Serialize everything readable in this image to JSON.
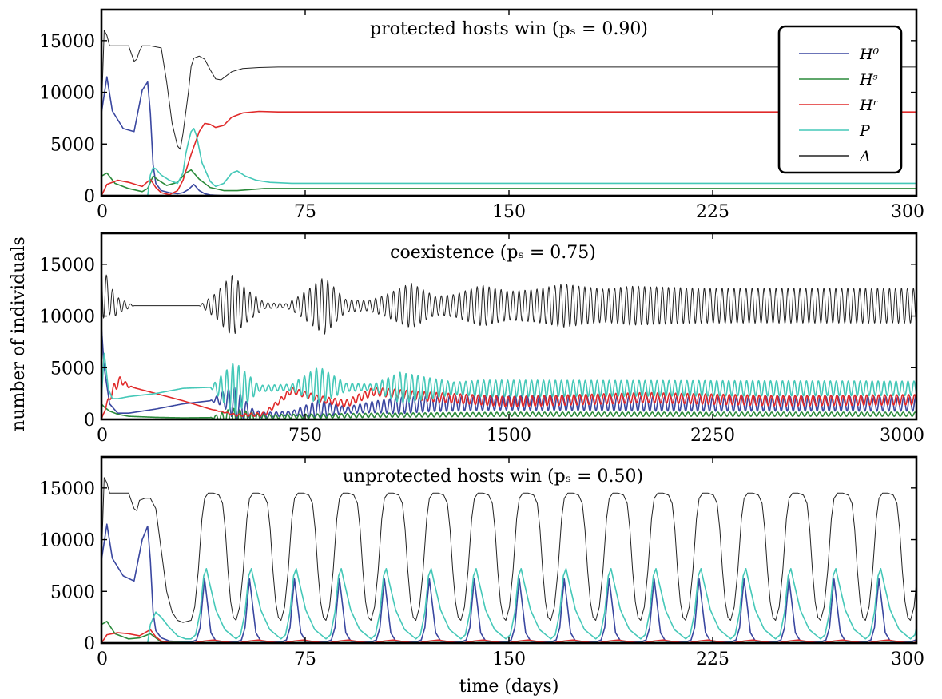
{
  "figure": {
    "ylabel": "number of individuals",
    "xlabel": "time (days)"
  },
  "legend": {
    "entries": [
      {
        "label": "H⁰",
        "color": "#3a47a0"
      },
      {
        "label": "Hˢ",
        "color": "#2a8a3a"
      },
      {
        "label": "Hʳ",
        "color": "#e02a2a"
      },
      {
        "label": "P",
        "color": "#45c8b8"
      },
      {
        "label": "Λ",
        "color": "#222222"
      }
    ]
  },
  "chart_data": [
    {
      "type": "line",
      "title": "protected hosts win (pₛ = 0.90)",
      "xlim": [
        0,
        300
      ],
      "ylim": [
        0,
        18000
      ],
      "xticks": [
        "0",
        "75",
        "150",
        "225",
        "300"
      ],
      "yticks": [
        "0",
        "5000",
        "10000",
        "15000"
      ],
      "series": [
        {
          "name": "H⁰",
          "color": "#3a47a0",
          "x": [
            0,
            2,
            4,
            8,
            12,
            15,
            17,
            18,
            19,
            20,
            22,
            25,
            28,
            30,
            32,
            34,
            36,
            38,
            40,
            45,
            300
          ],
          "y": [
            8000,
            11500,
            8200,
            6500,
            6200,
            10200,
            11000,
            8000,
            3000,
            1200,
            500,
            300,
            200,
            300,
            600,
            1100,
            500,
            200,
            80,
            0,
            0
          ]
        },
        {
          "name": "Hˢ",
          "color": "#2a8a3a",
          "x": [
            0,
            2,
            5,
            10,
            15,
            17,
            19,
            21,
            24,
            28,
            31,
            33,
            36,
            40,
            45,
            50,
            60,
            300
          ],
          "y": [
            1900,
            2200,
            1200,
            700,
            400,
            700,
            1900,
            1500,
            1000,
            1300,
            2200,
            2500,
            1600,
            800,
            500,
            500,
            700,
            700
          ]
        },
        {
          "name": "Hʳ",
          "color": "#e02a2a",
          "x": [
            0,
            2,
            6,
            10,
            15,
            18,
            20,
            22,
            25,
            28,
            30,
            33,
            36,
            38,
            40,
            42,
            45,
            48,
            52,
            58,
            65,
            75,
            300
          ],
          "y": [
            0,
            1100,
            1500,
            1300,
            900,
            1600,
            800,
            300,
            100,
            500,
            1500,
            4000,
            6200,
            7000,
            6900,
            6600,
            6800,
            7600,
            8000,
            8150,
            8100,
            8100,
            8100
          ]
        },
        {
          "name": "P",
          "color": "#45c8b8",
          "x": [
            0,
            17,
            18,
            19,
            20,
            22,
            25,
            28,
            30,
            31,
            32,
            33,
            34,
            35,
            37,
            40,
            42,
            45,
            48,
            50,
            53,
            57,
            62,
            70,
            300
          ],
          "y": [
            0,
            0,
            2000,
            2700,
            2600,
            2000,
            1500,
            1200,
            2200,
            4000,
            5200,
            6200,
            6500,
            5800,
            3200,
            1400,
            900,
            1200,
            2200,
            2400,
            1900,
            1500,
            1300,
            1200,
            1200
          ]
        },
        {
          "name": "Λ",
          "color": "#222222",
          "x": [
            0,
            1,
            2,
            3,
            6,
            10,
            12,
            13,
            14,
            15,
            18,
            22,
            24,
            26,
            28,
            29,
            30,
            32,
            33,
            34,
            36,
            38,
            40,
            42,
            44,
            48,
            52,
            58,
            65,
            300
          ],
          "y": [
            8000,
            16000,
            15500,
            14500,
            14500,
            14500,
            13000,
            13200,
            14000,
            14500,
            14500,
            14300,
            11000,
            7000,
            4800,
            4500,
            6000,
            10000,
            12500,
            13300,
            13500,
            13200,
            12200,
            11300,
            11200,
            12000,
            12300,
            12400,
            12450,
            12450
          ]
        }
      ]
    },
    {
      "type": "line",
      "title": "coexistence (pₛ = 0.75)",
      "xlim": [
        0,
        3000
      ],
      "ylim": [
        0,
        18000
      ],
      "xticks": [
        "0",
        "750",
        "1500",
        "2250",
        "3000"
      ],
      "yticks": [
        "0",
        "5000",
        "10000",
        "15000"
      ],
      "series": [
        {
          "name": "H⁰",
          "color": "#3a47a0",
          "baseline": {
            "x": [
              0,
              10,
              30,
              60,
              100,
              200,
              300,
              400,
              450,
              500,
              550,
              600,
              700,
              800,
              900,
              1000,
              1200,
              1500,
              2000,
              2500,
              3000
            ],
            "y": [
              9000,
              5000,
              1500,
              600,
              600,
              1000,
              1500,
              1800,
              2000,
              1400,
              700,
              400,
              600,
              1000,
              900,
              1200,
              1500,
              1600,
              1500,
              1500,
              1500
            ]
          },
          "oscillation": {
            "period": 22,
            "envelope": {
              "x": [
                0,
                400,
                440,
                490,
                560,
                700,
                800,
                900,
                1100,
                1400,
                3000
              ],
              "y": [
                0,
                0,
                600,
                1600,
                300,
                200,
                900,
                300,
                800,
                700,
                700
              ]
            }
          }
        },
        {
          "name": "Hˢ",
          "color": "#2a8a3a",
          "baseline": {
            "x": [
              0,
              10,
              30,
              60,
              100,
              200,
              300,
              500,
              700,
              1000,
              1500,
              3000
            ],
            "y": [
              1500,
              1200,
              800,
              500,
              300,
              200,
              150,
              200,
              300,
              400,
              500,
              500
            ]
          },
          "oscillation": {
            "period": 22,
            "envelope": {
              "x": [
                0,
                400,
                480,
                600,
                800,
                1100,
                3000
              ],
              "y": [
                0,
                0,
                900,
                200,
                200,
                200,
                200
              ]
            }
          }
        },
        {
          "name": "Hʳ",
          "color": "#e02a2a",
          "baseline": {
            "x": [
              0,
              20,
              50,
              70,
              100,
              200,
              300,
              400,
              500,
              600,
              700,
              800,
              900,
              1000,
              1200,
              1500,
              2000,
              2500,
              3000
            ],
            "y": [
              0,
              1500,
              3200,
              3800,
              3200,
              2500,
              1800,
              1000,
              400,
              500,
              2800,
              2000,
              1500,
              2700,
              2200,
              1700,
              2100,
              1800,
              1900
            ]
          },
          "oscillation": {
            "period": 22,
            "envelope": {
              "x": [
                0,
                50,
                120,
                400,
                700,
                800,
                1000,
                1500,
                3000
              ],
              "y": [
                0,
                500,
                0,
                0,
                300,
                300,
                400,
                500,
                500
              ]
            }
          }
        },
        {
          "name": "P",
          "color": "#45c8b8",
          "baseline": {
            "x": [
              0,
              10,
              25,
              40,
              60,
              100,
              200,
              300,
              400,
              500,
              600,
              700,
              800,
              900,
              1000,
              1200,
              1500,
              2000,
              2500,
              3000
            ],
            "y": [
              2000,
              6500,
              3000,
              2000,
              2000,
              2200,
              2500,
              3000,
              3100,
              3000,
              3000,
              3100,
              3300,
              3100,
              3100,
              3000,
              3000,
              3000,
              3000,
              3000
            ]
          },
          "oscillation": {
            "period": 22,
            "envelope": {
              "x": [
                0,
                400,
                490,
                580,
                700,
                800,
                900,
                1000,
                1100,
                1300,
                1400,
                3000
              ],
              "y": [
                0,
                0,
                2600,
                300,
                300,
                1800,
                400,
                300,
                1500,
                600,
                800,
                700
              ]
            }
          }
        },
        {
          "name": "Λ",
          "color": "#222222",
          "baseline": {
            "x": [
              0,
              20,
              50,
              100,
              200,
              400,
              3000
            ],
            "y": [
              13000,
              12000,
              11000,
              11000,
              11000,
              11000,
              11000
            ]
          },
          "oscillation": {
            "period": 22,
            "envelope": {
              "x": [
                0,
                20,
                60,
                120,
                360,
                420,
                480,
                540,
                600,
                680,
                720,
                820,
                900,
                980,
                1040,
                1140,
                1230,
                1300,
                1400,
                1500,
                1600,
                1700,
                1850,
                1950,
                2200,
                2500,
                3000
              ],
              "y": [
                3500,
                1800,
                800,
                0,
                0,
                1200,
                3000,
                1500,
                300,
                200,
                800,
                2800,
                600,
                500,
                1000,
                2200,
                900,
                1100,
                2000,
                1400,
                1600,
                2100,
                1600,
                1900,
                1700,
                1700,
                1700
              ]
            }
          }
        }
      ]
    },
    {
      "type": "line",
      "title": "unprotected hosts win (pₛ = 0.50)",
      "xlim": [
        0,
        300
      ],
      "ylim": [
        0,
        18000
      ],
      "xticks": [
        "0",
        "75",
        "150",
        "225",
        "300"
      ],
      "yticks": [
        "0",
        "5000",
        "10000",
        "15000"
      ],
      "cycle": {
        "start": 33,
        "period": 16.55
      },
      "series": [
        {
          "name": "H⁰",
          "color": "#3a47a0",
          "initial": {
            "x": [
              0,
              2,
              4,
              8,
              12,
              15,
              17,
              18,
              19,
              20,
              22,
              25,
              30,
              33
            ],
            "y": [
              8000,
              11500,
              8200,
              6500,
              6000,
              10000,
              11300,
              8000,
              3000,
              1200,
              500,
              200,
              100,
              100
            ]
          },
          "cycle_shape": {
            "phase": [
              0,
              0.12,
              0.2,
              0.26,
              0.3,
              0.36,
              0.44,
              0.55,
              1.0
            ],
            "y": [
              100,
              300,
              1500,
              4500,
              6200,
              4000,
              1000,
              200,
              100
            ]
          }
        },
        {
          "name": "Hˢ",
          "color": "#2a8a3a",
          "initial": {
            "x": [
              0,
              2,
              5,
              10,
              14,
              18,
              22,
              33,
              300
            ],
            "y": [
              1800,
              2100,
              900,
              400,
              500,
              900,
              100,
              50,
              50
            ]
          }
        },
        {
          "name": "Hʳ",
          "color": "#e02a2a",
          "initial": {
            "x": [
              0,
              2,
              6,
              10,
              14,
              16,
              18,
              20,
              22,
              25,
              33
            ],
            "y": [
              0,
              800,
              1000,
              900,
              700,
              1000,
              1300,
              600,
              200,
              50,
              0
            ]
          },
          "cycle_shape": {
            "phase": [
              0,
              0.3,
              0.5,
              0.7,
              1.0
            ],
            "y": [
              0,
              200,
              300,
              150,
              0
            ]
          }
        },
        {
          "name": "P",
          "color": "#45c8b8",
          "initial": {
            "x": [
              0,
              17,
              18,
              20,
              22,
              25,
              28,
              31,
              33
            ],
            "y": [
              0,
              0,
              1800,
              3000,
              2500,
              1500,
              700,
              400,
              400
            ]
          },
          "cycle_shape": {
            "phase": [
              0,
              0.1,
              0.2,
              0.28,
              0.34,
              0.4,
              0.55,
              0.75,
              1.0
            ],
            "y": [
              400,
              800,
              3000,
              6500,
              7200,
              6000,
              3200,
              1300,
              400
            ]
          }
        },
        {
          "name": "Λ",
          "color": "#222222",
          "initial": {
            "x": [
              0,
              1,
              2,
              3,
              6,
              10,
              12,
              13,
              14,
              16,
              18,
              20,
              22,
              24,
              26,
              28,
              30,
              33
            ],
            "y": [
              8000,
              16000,
              15500,
              14500,
              14500,
              14500,
              13000,
              12800,
              13800,
              14000,
              14000,
              13000,
              9000,
              5000,
              3000,
              2200,
              2000,
              2200
            ]
          },
          "cycle_shape": {
            "phase": [
              0,
              0.08,
              0.16,
              0.24,
              0.3,
              0.38,
              0.5,
              0.62,
              0.7,
              0.76,
              0.82,
              0.88,
              0.94,
              1.0
            ],
            "y": [
              2200,
              3500,
              7000,
              12000,
              14000,
              14500,
              14500,
              14300,
              13500,
              11000,
              7000,
              4000,
              2500,
              2200
            ]
          }
        }
      ]
    }
  ]
}
